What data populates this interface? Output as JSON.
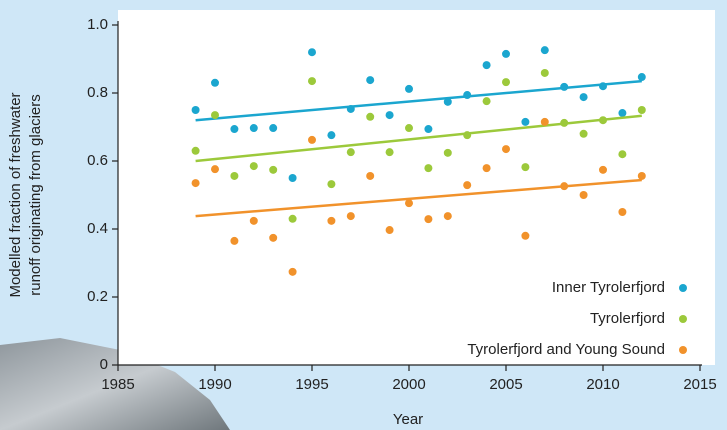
{
  "chart_data": {
    "type": "scatter",
    "xlabel": "Year",
    "ylabel": [
      "Modelled fraction of freshwater",
      "runoff originating from glaciers"
    ],
    "x": [
      1989,
      1990,
      1991,
      1992,
      1993,
      1994,
      1995,
      1996,
      1997,
      1998,
      1999,
      2000,
      2001,
      2002,
      2003,
      2004,
      2005,
      2006,
      2007,
      2008,
      2009,
      2010,
      2011,
      2012
    ],
    "series": [
      {
        "name": "Inner Tyrolerfjord",
        "color": "#1ba6cf",
        "values": [
          0.75,
          0.83,
          0.694,
          0.697,
          0.697,
          0.55,
          0.92,
          0.676,
          0.753,
          0.838,
          0.735,
          0.812,
          0.694,
          0.774,
          0.794,
          0.882,
          0.915,
          0.715,
          0.926,
          0.818,
          0.788,
          0.82,
          0.741,
          0.847
        ],
        "trend_x": [
          1989,
          2012
        ],
        "trend": [
          0.72,
          0.835
        ]
      },
      {
        "name": "Tyrolerfjord",
        "color": "#9cc93b",
        "values": [
          0.63,
          0.735,
          0.556,
          0.585,
          0.574,
          0.43,
          0.835,
          0.532,
          0.626,
          0.73,
          0.626,
          0.697,
          0.579,
          0.624,
          0.676,
          0.776,
          0.832,
          0.582,
          0.859,
          0.712,
          0.68,
          0.72,
          0.62,
          0.75
        ],
        "trend_x": [
          1989,
          2012
        ],
        "trend": [
          0.6,
          0.733
        ]
      },
      {
        "name": "Tyrolerfjord and Young Sound",
        "color": "#f1922b",
        "values": [
          0.535,
          0.576,
          0.365,
          0.424,
          0.374,
          0.274,
          0.662,
          0.424,
          0.438,
          0.556,
          0.397,
          0.476,
          0.429,
          0.438,
          0.529,
          0.579,
          0.635,
          0.38,
          0.715,
          0.526,
          0.5,
          0.574,
          0.45,
          0.556
        ],
        "trend_x": [
          1989,
          2012
        ],
        "trend": [
          0.438,
          0.544
        ]
      }
    ],
    "xlim": [
      1985,
      2015
    ],
    "xticks": [
      1985,
      1990,
      1995,
      2000,
      2005,
      2010,
      2015
    ],
    "ylim": [
      0,
      1
    ],
    "yticks": [
      0,
      0.2,
      0.4,
      0.6,
      0.8,
      {
        "value": 1,
        "label": "1.0"
      }
    ],
    "grid": false,
    "legend": "lower right"
  }
}
